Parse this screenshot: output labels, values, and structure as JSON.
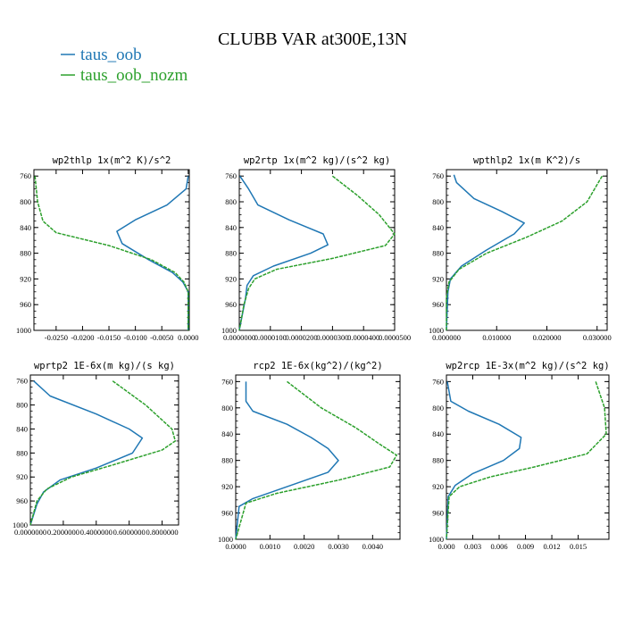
{
  "figure_title": "CLUBB VAR at300E,13N",
  "legend": [
    {
      "label": "taus_oob",
      "color": "#1f77b4"
    },
    {
      "label": "taus_oob_nozm",
      "color": "#2ca02c"
    }
  ],
  "chart_data": [
    {
      "type": "line",
      "title": "wp2thlp   1x(m^2 K)/s^2",
      "ylim": [
        1000,
        750
      ],
      "yticks": [
        "760",
        "800",
        "840",
        "880",
        "920",
        "960",
        "1000"
      ],
      "xlim": [
        -0.0292,
        0.0002
      ],
      "xticks": [
        {
          "v": -0.025,
          "label": "-0.0250"
        },
        {
          "v": -0.02,
          "label": "-0.0200"
        },
        {
          "v": -0.015,
          "label": "-0.0150"
        },
        {
          "v": -0.01,
          "label": "-0.0100"
        },
        {
          "v": -0.005,
          "label": "-0.0050"
        },
        {
          "v": 0.0,
          "label": "0.0000"
        }
      ],
      "series": [
        {
          "name": "taus_oob",
          "points": [
            [
              0.0,
              760
            ],
            [
              -0.0004,
              780
            ],
            [
              -0.004,
              805
            ],
            [
              -0.01,
              828
            ],
            [
              -0.0135,
              846
            ],
            [
              -0.0125,
              865
            ],
            [
              -0.0075,
              890
            ],
            [
              -0.003,
              910
            ],
            [
              -0.001,
              925
            ],
            [
              0.0,
              940
            ],
            [
              0.0,
              1000
            ]
          ]
        },
        {
          "name": "taus_oob_nozm",
          "points": [
            [
              -0.029,
              760
            ],
            [
              -0.0285,
              800
            ],
            [
              -0.0275,
              830
            ],
            [
              -0.025,
              848
            ],
            [
              -0.015,
              868
            ],
            [
              -0.007,
              890
            ],
            [
              -0.0025,
              910
            ],
            [
              -0.0008,
              925
            ],
            [
              0.0,
              940
            ],
            [
              0.0,
              1000
            ]
          ]
        }
      ]
    },
    {
      "type": "line",
      "title": "wp2rtp   1x(m^2 kg)/(s^2 kg)",
      "ylim": [
        1000,
        750
      ],
      "yticks": [
        "760",
        "800",
        "840",
        "880",
        "920",
        "960",
        "1000"
      ],
      "xlim": [
        0,
        5e-05
      ],
      "xticks": [
        {
          "v": 0.0,
          "label": "0.0000000"
        },
        {
          "v": 1e-05,
          "label": "0.0000100"
        },
        {
          "v": 2e-05,
          "label": "0.0000200"
        },
        {
          "v": 3e-05,
          "label": "0.0000300"
        },
        {
          "v": 4e-05,
          "label": "0.0000400"
        },
        {
          "v": 5e-05,
          "label": "0.0000500"
        }
      ],
      "series": [
        {
          "name": "taus_oob",
          "points": [
            [
              2e-07,
              760
            ],
            [
              3e-06,
              780
            ],
            [
              6e-06,
              805
            ],
            [
              1.6e-05,
              828
            ],
            [
              2.7e-05,
              850
            ],
            [
              2.85e-05,
              867
            ],
            [
              2.3e-05,
              880
            ],
            [
              1.1e-05,
              900
            ],
            [
              4.5e-06,
              915
            ],
            [
              2.5e-06,
              930
            ],
            [
              2e-06,
              950
            ],
            [
              1e-06,
              975
            ],
            [
              0.0,
              1000
            ]
          ]
        },
        {
          "name": "taus_oob_nozm",
          "points": [
            [
              3e-05,
              760
            ],
            [
              3.8e-05,
              790
            ],
            [
              4.5e-05,
              820
            ],
            [
              5e-05,
              850
            ],
            [
              4.7e-05,
              868
            ],
            [
              3e-05,
              888
            ],
            [
              1.2e-05,
              905
            ],
            [
              5e-06,
              920
            ],
            [
              3e-06,
              935
            ],
            [
              1.5e-06,
              960
            ],
            [
              0.0,
              1000
            ]
          ]
        }
      ]
    },
    {
      "type": "line",
      "title": "wpthlp2   1x(m K^2)/s",
      "ylim": [
        1000,
        750
      ],
      "yticks": [
        "760",
        "800",
        "840",
        "880",
        "920",
        "960",
        "1000"
      ],
      "xlim": [
        0,
        0.032
      ],
      "xticks": [
        {
          "v": 0.0,
          "label": "0.000000"
        },
        {
          "v": 0.01,
          "label": "0.010000"
        },
        {
          "v": 0.02,
          "label": "0.020000"
        },
        {
          "v": 0.03,
          "label": "0.030000"
        }
      ],
      "series": [
        {
          "name": "taus_oob",
          "points": [
            [
              0.0015,
              758
            ],
            [
              0.002,
              770
            ],
            [
              0.0055,
              795
            ],
            [
              0.011,
              815
            ],
            [
              0.0155,
              833
            ],
            [
              0.0135,
              850
            ],
            [
              0.008,
              875
            ],
            [
              0.003,
              900
            ],
            [
              0.0008,
              920
            ],
            [
              0.0003,
              940
            ],
            [
              0.0,
              1000
            ]
          ]
        },
        {
          "name": "taus_oob_nozm",
          "points": [
            [
              0.031,
              760
            ],
            [
              0.028,
              800
            ],
            [
              0.023,
              830
            ],
            [
              0.016,
              855
            ],
            [
              0.008,
              880
            ],
            [
              0.0025,
              905
            ],
            [
              0.0005,
              925
            ],
            [
              0.0,
              950
            ],
            [
              0.0,
              1000
            ]
          ]
        }
      ]
    },
    {
      "type": "line",
      "title": "wprtp2   1E-6x(m kg)/(s kg)",
      "ylim": [
        1000,
        750
      ],
      "yticks": [
        "760",
        "800",
        "840",
        "880",
        "920",
        "960",
        "1000"
      ],
      "xlim": [
        0,
        0.9
      ],
      "xticks": [
        {
          "v": 0.0,
          "label": "0.0000000"
        },
        {
          "v": 0.2,
          "label": "0.2000000"
        },
        {
          "v": 0.4,
          "label": "0.4000000"
        },
        {
          "v": 0.6,
          "label": "0.6000000"
        },
        {
          "v": 0.8,
          "label": "0.8000000"
        }
      ],
      "series": [
        {
          "name": "taus_oob",
          "points": [
            [
              0.02,
              760
            ],
            [
              0.12,
              785
            ],
            [
              0.4,
              815
            ],
            [
              0.6,
              840
            ],
            [
              0.68,
              855
            ],
            [
              0.62,
              880
            ],
            [
              0.4,
              905
            ],
            [
              0.18,
              925
            ],
            [
              0.08,
              945
            ],
            [
              0.04,
              965
            ],
            [
              0.0,
              1000
            ]
          ]
        },
        {
          "name": "taus_oob_nozm",
          "points": [
            [
              0.5,
              760
            ],
            [
              0.7,
              800
            ],
            [
              0.86,
              840
            ],
            [
              0.88,
              860
            ],
            [
              0.8,
              875
            ],
            [
              0.5,
              900
            ],
            [
              0.25,
              920
            ],
            [
              0.1,
              940
            ],
            [
              0.04,
              960
            ],
            [
              0.0,
              1000
            ]
          ]
        }
      ]
    },
    {
      "type": "line",
      "title": "rcp2   1E-6x(kg^2)/(kg^2)",
      "ylim": [
        1000,
        750
      ],
      "yticks": [
        "760",
        "800",
        "840",
        "880",
        "920",
        "960",
        "1000"
      ],
      "xlim": [
        0,
        0.0048
      ],
      "xticks": [
        {
          "v": 0.0,
          "label": "0.0000"
        },
        {
          "v": 0.001,
          "label": "0.0010"
        },
        {
          "v": 0.002,
          "label": "0.0020"
        },
        {
          "v": 0.003,
          "label": "0.0030"
        },
        {
          "v": 0.004,
          "label": "0.0040"
        }
      ],
      "series": [
        {
          "name": "taus_oob",
          "points": [
            [
              0.0003,
              760
            ],
            [
              0.0003,
              790
            ],
            [
              0.0005,
              805
            ],
            [
              0.0015,
              825
            ],
            [
              0.0022,
              845
            ],
            [
              0.0027,
              862
            ],
            [
              0.003,
              880
            ],
            [
              0.0027,
              898
            ],
            [
              0.0015,
              920
            ],
            [
              0.0005,
              938
            ],
            [
              0.0001,
              950
            ],
            [
              0.0,
              1000
            ]
          ]
        },
        {
          "name": "taus_oob_nozm",
          "points": [
            [
              0.0015,
              760
            ],
            [
              0.0025,
              800
            ],
            [
              0.0035,
              830
            ],
            [
              0.0042,
              855
            ],
            [
              0.0047,
              872
            ],
            [
              0.0045,
              890
            ],
            [
              0.003,
              910
            ],
            [
              0.0012,
              930
            ],
            [
              0.0003,
              945
            ],
            [
              0.0,
              1000
            ]
          ]
        }
      ]
    },
    {
      "type": "line",
      "title": "wp2rcp   1E-3x(m^2 kg)/(s^2 kg)",
      "ylim": [
        1000,
        750
      ],
      "yticks": [
        "760",
        "800",
        "840",
        "880",
        "920",
        "960",
        "1000"
      ],
      "xlim": [
        0,
        0.0185
      ],
      "xticks": [
        {
          "v": 0.0,
          "label": "0.000"
        },
        {
          "v": 0.003,
          "label": "0.003"
        },
        {
          "v": 0.006,
          "label": "0.006"
        },
        {
          "v": 0.009,
          "label": "0.009"
        },
        {
          "v": 0.012,
          "label": "0.012"
        },
        {
          "v": 0.015,
          "label": "0.015"
        }
      ],
      "series": [
        {
          "name": "taus_oob",
          "points": [
            [
              0.0001,
              760
            ],
            [
              0.0005,
              790
            ],
            [
              0.0025,
              805
            ],
            [
              0.006,
              825
            ],
            [
              0.0085,
              845
            ],
            [
              0.0083,
              862
            ],
            [
              0.0065,
              880
            ],
            [
              0.003,
              900
            ],
            [
              0.001,
              918
            ],
            [
              0.0002,
              935
            ],
            [
              0.0,
              1000
            ]
          ]
        },
        {
          "name": "taus_oob_nozm",
          "points": [
            [
              0.017,
              760
            ],
            [
              0.018,
              800
            ],
            [
              0.0182,
              840
            ],
            [
              0.016,
              870
            ],
            [
              0.01,
              890
            ],
            [
              0.005,
              905
            ],
            [
              0.0015,
              920
            ],
            [
              0.0003,
              935
            ],
            [
              0.0,
              1000
            ]
          ]
        }
      ]
    }
  ]
}
